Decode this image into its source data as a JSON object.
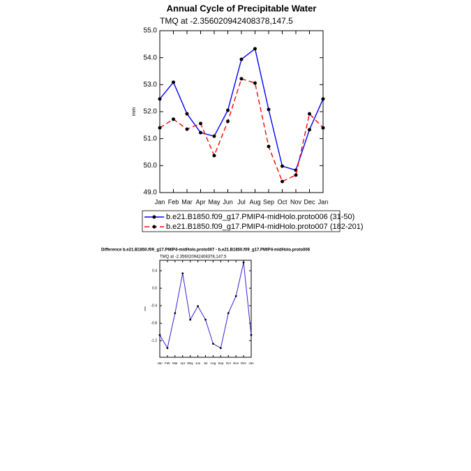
{
  "chart_data": [
    {
      "type": "line",
      "title": "Annual Cycle of Precipitable Water",
      "subtitle": "TMQ at -2.356020942408378,147.5",
      "ylabel": "mm",
      "categories": [
        "Jan",
        "Feb",
        "Mar",
        "Apr",
        "May",
        "Jun",
        "Jul",
        "Aug",
        "Sep",
        "Oct",
        "Nov",
        "Dec",
        "Jan"
      ],
      "series": [
        {
          "name": "b.e21.B1850.f09_g17.PMIP4-midHolo.proto006 (31-50)",
          "color": "#0000ff",
          "values": [
            52.47,
            53.09,
            51.92,
            51.22,
            51.09,
            52.05,
            53.94,
            54.33,
            52.08,
            49.98,
            49.83,
            51.33,
            52.47
          ]
        },
        {
          "name": "b.e21.B1850.f09_g17.PMIP4-midHolo.proto007 (182-201)",
          "color": "#ff0000",
          "dashed": true,
          "values": [
            51.4,
            51.72,
            51.35,
            51.56,
            50.37,
            51.64,
            53.22,
            53.06,
            50.71,
            49.41,
            49.65,
            51.92,
            51.4
          ]
        }
      ],
      "ylim": [
        49,
        55
      ],
      "yticks": [
        {
          "value": 49,
          "label": "49.0"
        },
        {
          "value": 50,
          "label": "50.0"
        },
        {
          "value": 51,
          "label": "51.0"
        },
        {
          "value": 52,
          "label": "52.0"
        },
        {
          "value": 53,
          "label": "53.0"
        },
        {
          "value": 54,
          "label": "54.0"
        },
        {
          "value": 55,
          "label": "55.0"
        }
      ]
    },
    {
      "type": "line",
      "title": "Difference b.e21.B1850.f09_g17.PMIP4-midHolo.proto007 - b.e21.B1850.f09_g17.PMIP4-midHolo.proto006",
      "subtitle": "TMQ at -2.356020942408378,147.5",
      "ylabel": "mm",
      "categories": [
        "Jan",
        "Feb",
        "Mar",
        "Apr",
        "May",
        "Jun",
        "Jul",
        "Aug",
        "Sep",
        "Oct",
        "Nov",
        "Dec",
        "Jan"
      ],
      "color": "#3a1fd0",
      "values": [
        -1.07,
        -1.37,
        -0.57,
        0.34,
        -0.72,
        -0.41,
        -0.72,
        -1.27,
        -1.37,
        -0.57,
        -0.18,
        0.59,
        -1.07
      ],
      "ylim": [
        -1.58,
        0.64
      ],
      "yticks": [
        -1.2,
        -0.8,
        -0.4,
        {
          "value": 0,
          "label": "0.0"
        },
        0.4
      ]
    }
  ]
}
